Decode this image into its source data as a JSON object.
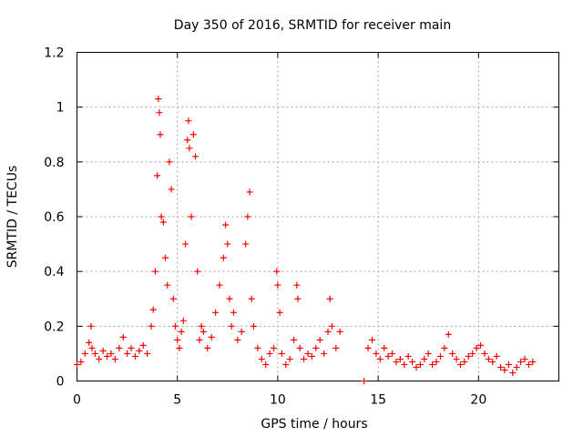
{
  "chart_data": {
    "type": "scatter",
    "title": "Day 350 of 2016, SRMTID for receiver main",
    "xlabel": "GPS time / hours",
    "ylabel": "SRMTID / TECUs",
    "xlim": [
      0,
      24
    ],
    "ylim": [
      0,
      1.2
    ],
    "x_ticks": [
      0,
      5,
      10,
      15,
      20
    ],
    "x_tick_labels": [
      "0",
      "5",
      "10",
      "15",
      "20"
    ],
    "y_ticks": [
      0,
      0.2,
      0.4,
      0.6,
      0.8,
      1,
      1.2
    ],
    "y_tick_labels": [
      "0",
      "0.2",
      "0.4",
      "0.6",
      "0.8",
      "1",
      "1.2"
    ],
    "grid": true,
    "marker": "+",
    "series": [
      {
        "name": "main",
        "color": "#ff0000",
        "x": [
          0.0,
          0.2,
          0.4,
          0.6,
          0.7,
          0.75,
          0.9,
          1.1,
          1.3,
          1.5,
          1.7,
          1.9,
          2.1,
          2.3,
          2.5,
          2.7,
          2.9,
          3.1,
          3.3,
          3.5,
          3.7,
          3.8,
          3.9,
          4.0,
          4.05,
          4.1,
          4.15,
          4.2,
          4.3,
          4.4,
          4.5,
          4.6,
          4.7,
          4.8,
          4.9,
          5.0,
          5.1,
          5.2,
          5.3,
          5.4,
          5.5,
          5.55,
          5.6,
          5.7,
          5.8,
          5.9,
          6.0,
          6.1,
          6.2,
          6.3,
          6.5,
          6.7,
          6.9,
          7.1,
          7.3,
          7.4,
          7.5,
          7.6,
          7.7,
          7.8,
          8.0,
          8.2,
          8.4,
          8.5,
          8.6,
          8.7,
          8.8,
          9.0,
          9.2,
          9.4,
          9.6,
          9.8,
          9.95,
          10.0,
          10.1,
          10.2,
          10.4,
          10.6,
          10.8,
          10.95,
          11.0,
          11.1,
          11.3,
          11.5,
          11.7,
          11.9,
          12.1,
          12.3,
          12.5,
          12.6,
          12.7,
          12.9,
          13.1,
          14.3,
          14.5,
          14.7,
          14.9,
          15.1,
          15.3,
          15.5,
          15.7,
          15.9,
          16.1,
          16.3,
          16.5,
          16.7,
          16.9,
          17.1,
          17.3,
          17.5,
          17.7,
          17.9,
          18.1,
          18.3,
          18.5,
          18.7,
          18.9,
          19.1,
          19.3,
          19.5,
          19.7,
          19.9,
          20.1,
          20.3,
          20.5,
          20.7,
          20.9,
          21.1,
          21.3,
          21.5,
          21.7,
          21.9,
          22.1,
          22.3,
          22.5,
          22.7
        ],
        "y": [
          0.06,
          0.07,
          0.1,
          0.14,
          0.2,
          0.12,
          0.1,
          0.08,
          0.11,
          0.09,
          0.1,
          0.08,
          0.12,
          0.16,
          0.1,
          0.12,
          0.09,
          0.11,
          0.13,
          0.1,
          0.2,
          0.26,
          0.4,
          0.75,
          1.03,
          0.98,
          0.9,
          0.6,
          0.58,
          0.45,
          0.35,
          0.8,
          0.7,
          0.3,
          0.2,
          0.15,
          0.12,
          0.18,
          0.22,
          0.5,
          0.88,
          0.95,
          0.85,
          0.6,
          0.9,
          0.82,
          0.4,
          0.15,
          0.2,
          0.18,
          0.12,
          0.16,
          0.25,
          0.35,
          0.45,
          0.57,
          0.5,
          0.3,
          0.2,
          0.25,
          0.15,
          0.18,
          0.5,
          0.6,
          0.69,
          0.3,
          0.2,
          0.12,
          0.08,
          0.06,
          0.1,
          0.12,
          0.4,
          0.35,
          0.25,
          0.1,
          0.06,
          0.08,
          0.15,
          0.35,
          0.3,
          0.12,
          0.08,
          0.1,
          0.09,
          0.12,
          0.15,
          0.1,
          0.18,
          0.3,
          0.2,
          0.12,
          0.18,
          0.0,
          0.12,
          0.15,
          0.1,
          0.08,
          0.12,
          0.09,
          0.1,
          0.07,
          0.08,
          0.06,
          0.09,
          0.07,
          0.05,
          0.06,
          0.08,
          0.1,
          0.06,
          0.07,
          0.09,
          0.12,
          0.17,
          0.1,
          0.08,
          0.06,
          0.07,
          0.09,
          0.1,
          0.12,
          0.13,
          0.1,
          0.08,
          0.07,
          0.09,
          0.05,
          0.04,
          0.06,
          0.03,
          0.05,
          0.07,
          0.08,
          0.06,
          0.07
        ]
      }
    ]
  }
}
